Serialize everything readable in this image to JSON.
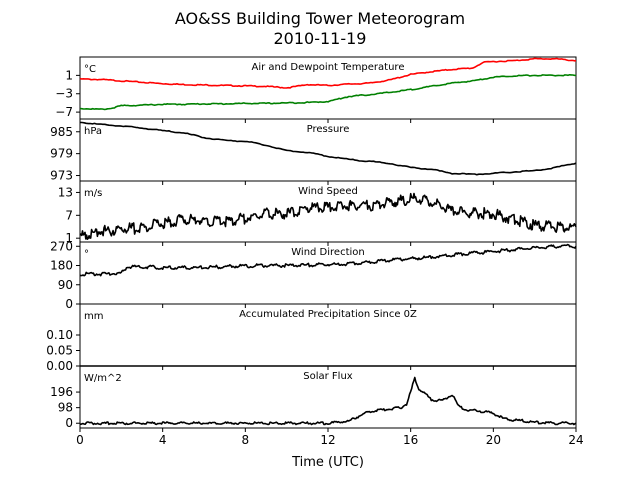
{
  "figure": {
    "title_line1": "AO&SS Building Tower Meteorogram",
    "title_line2": "2010-11-19",
    "xlabel": "Time (UTC)"
  },
  "chart_data": [
    {
      "type": "line",
      "title": "Air and Dewpoint Temperature",
      "unit": "°C",
      "xlim": [
        0,
        24
      ],
      "ylim": [
        -8.5,
        5
      ],
      "yticks": [
        "1",
        "−3",
        "−7"
      ],
      "ytick_values": [
        1,
        -3,
        -7
      ],
      "xticks": [
        "0",
        "4",
        "8",
        "12",
        "16",
        "20",
        "24"
      ],
      "xtick_values": [
        0,
        4,
        8,
        12,
        16,
        20,
        24
      ],
      "series": [
        {
          "color": "#ff0000",
          "x": [
            0,
            1,
            2,
            3,
            4,
            5,
            6,
            7,
            8,
            9,
            10,
            10.5,
            11,
            12,
            13,
            14,
            15,
            16,
            17,
            18,
            19,
            19.5,
            20,
            21,
            22,
            23,
            24
          ],
          "y": [
            0.2,
            0.1,
            -0.2,
            -0.5,
            -0.8,
            -1.0,
            -1.1,
            -1.2,
            -1.3,
            -1.4,
            -1.7,
            -1.4,
            -1.0,
            -1.2,
            -0.9,
            -0.7,
            0.0,
            1.2,
            1.8,
            2.3,
            2.6,
            3.8,
            4.0,
            4.2,
            4.6,
            4.6,
            4.2
          ]
        },
        {
          "color": "#008000",
          "x": [
            0,
            1,
            1.5,
            2,
            3,
            4,
            5,
            6,
            7,
            8,
            9,
            10,
            11,
            12,
            13,
            14,
            15,
            16,
            17,
            18,
            19,
            20,
            21,
            22,
            23,
            24
          ],
          "y": [
            -6.2,
            -6.4,
            -6.2,
            -5.6,
            -5.5,
            -5.3,
            -5.3,
            -5.2,
            -5.2,
            -5.1,
            -5.1,
            -5.0,
            -4.9,
            -4.7,
            -3.6,
            -3.2,
            -2.7,
            -2.1,
            -1.4,
            -0.7,
            -0.2,
            0.6,
            0.9,
            1.0,
            1.0,
            1.0
          ]
        }
      ]
    },
    {
      "type": "line",
      "title": "Pressure",
      "unit": "hPa",
      "xlim": [
        0,
        24
      ],
      "ylim": [
        971.5,
        988.5
      ],
      "yticks": [
        "985",
        "979",
        "973"
      ],
      "ytick_values": [
        985,
        979,
        973
      ],
      "series": [
        {
          "color": "#000000",
          "x": [
            0,
            1,
            2,
            3,
            4,
            5,
            6,
            7,
            8,
            9,
            10,
            11,
            12,
            13,
            14,
            15,
            16,
            17,
            18,
            19,
            20,
            21,
            22,
            23,
            24
          ],
          "y": [
            987.6,
            987.0,
            986.6,
            986.0,
            985.3,
            984.7,
            983.4,
            982.6,
            982.4,
            981.3,
            979.9,
            979.3,
            978.3,
            977.4,
            976.9,
            976.3,
            975.2,
            974.7,
            973.6,
            973.3,
            973.6,
            974.0,
            974.3,
            975.2,
            976.4
          ]
        }
      ]
    },
    {
      "type": "line",
      "title": "Wind Speed",
      "unit": "m/s",
      "xlim": [
        0,
        24
      ],
      "ylim": [
        0,
        16
      ],
      "yticks": [
        "13",
        "7",
        "1"
      ],
      "ytick_values": [
        13,
        7,
        1
      ],
      "series": [
        {
          "color": "#000000",
          "x": [
            0,
            1,
            2,
            3,
            4,
            5,
            6,
            7,
            8,
            9,
            10,
            11,
            12,
            13,
            14,
            15,
            16,
            17,
            18,
            19,
            20,
            21,
            22,
            23,
            24
          ],
          "y": [
            1.6,
            2.8,
            3.4,
            3.6,
            5.0,
            6.0,
            5.6,
            5.3,
            6.2,
            7.6,
            7.2,
            9.0,
            9.0,
            9.6,
            9.6,
            10.4,
            11.4,
            10.5,
            8.0,
            7.5,
            7.5,
            6.0,
            4.4,
            4.0,
            4.0
          ]
        }
      ]
    },
    {
      "type": "line",
      "title": "Wind Direction",
      "unit": "°",
      "xlim": [
        0,
        24
      ],
      "ylim": [
        0,
        290
      ],
      "yticks": [
        "270",
        "180",
        "90",
        "0"
      ],
      "ytick_values": [
        270,
        180,
        90,
        0
      ],
      "series": [
        {
          "color": "#000000",
          "x": [
            0,
            1,
            2,
            2.3,
            3,
            4,
            5,
            6,
            7,
            8,
            9,
            10,
            11,
            12,
            13,
            14,
            15,
            16,
            17,
            18,
            19,
            20,
            21,
            22,
            23,
            24
          ],
          "y": [
            140,
            140,
            145,
            175,
            175,
            170,
            170,
            170,
            175,
            178,
            180,
            180,
            182,
            185,
            188,
            195,
            205,
            212,
            220,
            230,
            238,
            245,
            255,
            262,
            270,
            270
          ]
        }
      ]
    },
    {
      "type": "line",
      "title": "Accumulated Precipitation Since 0Z",
      "unit": "mm",
      "xlim": [
        0,
        24
      ],
      "ylim": [
        0,
        0.2
      ],
      "yticks": [
        "0.10",
        "0.05",
        "0.00"
      ],
      "ytick_values": [
        0.1,
        0.05,
        0.0
      ],
      "series": [
        {
          "color": "#000000",
          "x": [
            0,
            24
          ],
          "y": [
            0,
            0
          ]
        }
      ]
    },
    {
      "type": "line",
      "title": "Solar Flux",
      "unit": "W/m^2",
      "xlim": [
        0,
        24
      ],
      "ylim": [
        -30,
        360
      ],
      "yticks": [
        "196",
        "98",
        "0"
      ],
      "ytick_values": [
        196,
        98,
        0
      ],
      "series": [
        {
          "color": "#000000",
          "x": [
            0,
            12,
            13,
            13.5,
            14,
            14.5,
            15,
            15.5,
            15.8,
            16,
            16.2,
            16.4,
            16.7,
            17,
            17.5,
            18,
            18.3,
            18.6,
            19,
            19.5,
            20,
            20.5,
            21,
            21.5,
            22,
            23,
            24
          ],
          "y": [
            0,
            0,
            12,
            45,
            72,
            82,
            92,
            96,
            120,
            195,
            285,
            215,
            185,
            150,
            140,
            182,
            110,
            85,
            80,
            75,
            62,
            28,
            20,
            15,
            5,
            0,
            0
          ]
        }
      ]
    }
  ]
}
